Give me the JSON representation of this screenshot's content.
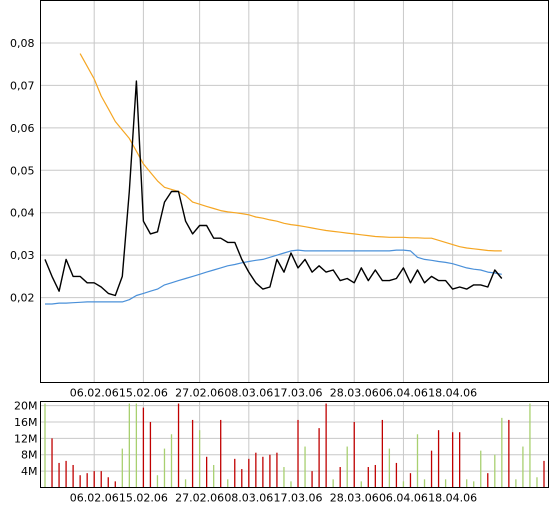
{
  "chart_data": [
    {
      "type": "line",
      "title": "",
      "xlabel": "",
      "ylabel": "",
      "ylim": [
        0.0,
        0.09
      ],
      "grid": true,
      "y_ticks": [
        "0,02",
        "0,03",
        "0,04",
        "0,05",
        "0,06",
        "0,07",
        "0,08"
      ],
      "y_tick_values": [
        0.02,
        0.03,
        0.04,
        0.05,
        0.06,
        0.07,
        0.08
      ],
      "x_ticks": [
        "06.02.06",
        "15.02.06",
        "27.02.06",
        "08.03.06",
        "17.03.06",
        "28.03.06",
        "06.04.06",
        "18.04.06"
      ],
      "x_tick_index": [
        7,
        14,
        22,
        29,
        36,
        44,
        51,
        58
      ],
      "x_count": 72,
      "colors": {
        "price": "#000000",
        "ma_short": "#4a90d9",
        "ma_long": "#f5a623",
        "grid": "#c8c8c8"
      },
      "series": [
        {
          "key": "price",
          "start": 0,
          "values": [
            0.029,
            0.025,
            0.0215,
            0.029,
            0.025,
            0.025,
            0.0235,
            0.0235,
            0.0225,
            0.021,
            0.0205,
            0.025,
            0.045,
            0.071,
            0.038,
            0.035,
            0.0355,
            0.0425,
            0.045,
            0.045,
            0.038,
            0.035,
            0.037,
            0.037,
            0.034,
            0.034,
            0.033,
            0.033,
            0.029,
            0.026,
            0.0235,
            0.022,
            0.0225,
            0.029,
            0.026,
            0.0305,
            0.027,
            0.029,
            0.026,
            0.0275,
            0.026,
            0.0265,
            0.024,
            0.0245,
            0.0235,
            0.027,
            0.024,
            0.0265,
            0.024,
            0.024,
            0.0245,
            0.027,
            0.0235,
            0.0265,
            0.0235,
            0.025,
            0.024,
            0.024,
            0.022,
            0.0225,
            0.022,
            0.023,
            0.023,
            0.0225,
            0.0265,
            0.0245
          ]
        },
        {
          "key": "ma_short",
          "start": 0,
          "values": [
            0.0185,
            0.0185,
            0.0187,
            0.0187,
            0.0188,
            0.0189,
            0.019,
            0.019,
            0.019,
            0.019,
            0.019,
            0.019,
            0.0195,
            0.0205,
            0.021,
            0.0215,
            0.022,
            0.023,
            0.0235,
            0.024,
            0.0245,
            0.025,
            0.0255,
            0.026,
            0.0265,
            0.027,
            0.0275,
            0.0278,
            0.0282,
            0.0285,
            0.0288,
            0.029,
            0.0295,
            0.03,
            0.0305,
            0.031,
            0.0312,
            0.031,
            0.031,
            0.031,
            0.031,
            0.031,
            0.031,
            0.031,
            0.031,
            0.031,
            0.031,
            0.031,
            0.031,
            0.031,
            0.0312,
            0.0312,
            0.031,
            0.0295,
            0.029,
            0.0288,
            0.0285,
            0.0283,
            0.028,
            0.0275,
            0.027,
            0.0267,
            0.0265,
            0.026,
            0.0258,
            0.0255
          ]
        },
        {
          "key": "ma_long",
          "start": 5,
          "values": [
            0.0775,
            0.0745,
            0.0715,
            0.0675,
            0.0645,
            0.0615,
            0.0595,
            0.0575,
            0.0545,
            0.0515,
            0.0495,
            0.0475,
            0.046,
            0.0455,
            0.045,
            0.044,
            0.0425,
            0.042,
            0.0415,
            0.041,
            0.0405,
            0.0402,
            0.04,
            0.0398,
            0.0395,
            0.039,
            0.0387,
            0.0383,
            0.038,
            0.0375,
            0.0372,
            0.037,
            0.0367,
            0.0364,
            0.0361,
            0.0358,
            0.0356,
            0.0354,
            0.0352,
            0.035,
            0.0348,
            0.0346,
            0.0344,
            0.0343,
            0.0342,
            0.0342,
            0.0342,
            0.0341,
            0.0341,
            0.034,
            0.034,
            0.0335,
            0.033,
            0.0325,
            0.032,
            0.0317,
            0.0315,
            0.0313,
            0.0311,
            0.031,
            0.031
          ]
        }
      ]
    },
    {
      "type": "bar",
      "title": "",
      "xlabel": "",
      "ylabel": "",
      "ylim": [
        0,
        21
      ],
      "grid": true,
      "y_ticks": [
        "4M",
        "8M",
        "12M",
        "16M",
        "20M"
      ],
      "y_tick_values": [
        4,
        8,
        12,
        16,
        20
      ],
      "x_ticks": [
        "06.02.06",
        "15.02.06",
        "27.02.06",
        "08.03.06",
        "17.03.06",
        "28.03.06",
        "06.04.06",
        "18.04.06"
      ],
      "x_tick_index": [
        7,
        14,
        22,
        29,
        36,
        44,
        51,
        58
      ],
      "x_count": 72,
      "colors": {
        "up": "#c00000",
        "down": "#a8d070",
        "grid": "#c8c8c8"
      },
      "values": [
        20.5,
        12,
        6,
        6.5,
        5.5,
        3,
        3.5,
        4,
        4,
        2.5,
        1.5,
        9.5,
        20.5,
        20.5,
        19.5,
        16,
        3,
        9.5,
        13,
        20.5,
        2,
        16.5,
        14,
        7.5,
        5.5,
        16.5,
        2,
        7,
        4.5,
        7,
        8.5,
        7.5,
        8,
        8.5,
        5,
        1.5,
        16.5,
        10,
        4,
        14.5,
        20.5,
        2,
        5,
        10,
        16,
        1.5,
        5,
        5.5,
        16.5,
        9.5,
        6,
        1.5,
        3.5,
        13,
        2,
        9,
        14,
        2,
        13.5,
        13.5,
        2,
        1.5,
        9,
        3.5,
        8,
        17,
        16.5,
        2,
        10,
        20.5,
        2.5,
        6.5
      ],
      "colorkeys": [
        "down",
        "up",
        "up",
        "up",
        "up",
        "up",
        "up",
        "up",
        "up",
        "up",
        "up",
        "down",
        "down",
        "down",
        "up",
        "up",
        "down",
        "down",
        "down",
        "up",
        "down",
        "up",
        "down",
        "up",
        "down",
        "up",
        "down",
        "up",
        "up",
        "up",
        "up",
        "up",
        "up",
        "up",
        "down",
        "down",
        "up",
        "down",
        "up",
        "up",
        "up",
        "down",
        "up",
        "down",
        "up",
        "down",
        "up",
        "up",
        "up",
        "down",
        "up",
        "down",
        "up",
        "down",
        "down",
        "up",
        "up",
        "down",
        "up",
        "up",
        "down",
        "down",
        "down",
        "up",
        "down",
        "down",
        "up",
        "down",
        "down",
        "down",
        "down",
        "up"
      ]
    }
  ]
}
